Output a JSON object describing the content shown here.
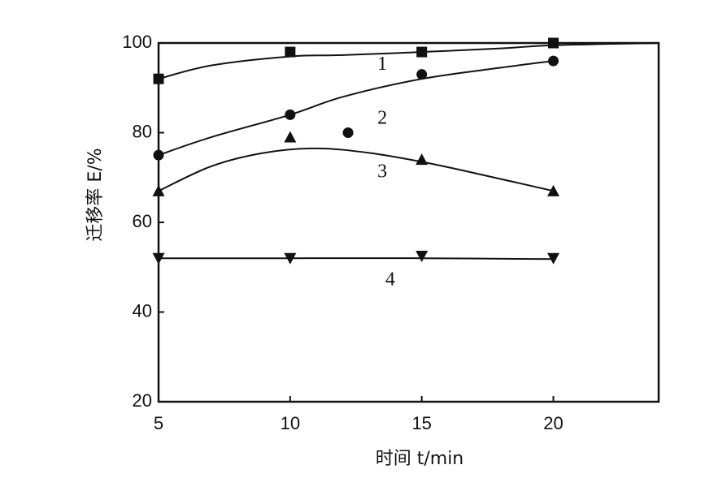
{
  "chart_data": {
    "type": "line",
    "title": "",
    "xlabel": "时间 t/min",
    "ylabel": "迁移率 E/%",
    "xlim": [
      5,
      24
    ],
    "ylim": [
      20,
      100
    ],
    "x_ticks": [
      5,
      10,
      15,
      20
    ],
    "y_ticks": [
      20,
      40,
      60,
      80,
      100
    ],
    "grid": false,
    "legend": "none",
    "series": [
      {
        "name": "1",
        "marker": "square",
        "x": [
          5,
          10,
          15,
          20
        ],
        "y": [
          92,
          98,
          98,
          100
        ]
      },
      {
        "name": "2",
        "marker": "circle",
        "x": [
          5,
          10,
          12.2,
          15,
          20
        ],
        "y": [
          75,
          84,
          80,
          93,
          96
        ]
      },
      {
        "name": "3",
        "marker": "triangle-up",
        "x": [
          5,
          10,
          15,
          20
        ],
        "y": [
          67,
          79,
          74,
          67
        ]
      },
      {
        "name": "4",
        "marker": "triangle-down",
        "x": [
          5,
          10,
          15,
          20
        ],
        "y": [
          52,
          52,
          52.5,
          52
        ]
      }
    ],
    "fit_curves": [
      {
        "series": "1",
        "x": [
          5,
          7,
          10,
          12,
          15,
          18,
          20,
          24
        ],
        "y": [
          92,
          95,
          97,
          97.3,
          98,
          98.8,
          99.5,
          100
        ]
      },
      {
        "series": "2",
        "x": [
          5,
          7,
          10,
          12,
          15,
          18,
          20
        ],
        "y": [
          75,
          79,
          84,
          88,
          92,
          94.5,
          96
        ]
      },
      {
        "series": "3",
        "x": [
          5,
          7,
          9,
          11,
          13,
          15,
          17,
          20
        ],
        "y": [
          67,
          72.5,
          75.5,
          76.5,
          75.5,
          73.5,
          71,
          67
        ]
      },
      {
        "series": "4",
        "x": [
          5,
          10,
          15,
          20
        ],
        "y": [
          52,
          52,
          52,
          51.8
        ]
      }
    ],
    "series_labels": [
      {
        "text": "1",
        "x": 13.5,
        "y": 95
      },
      {
        "text": "2",
        "x": 13.5,
        "y": 83
      },
      {
        "text": "3",
        "x": 13.5,
        "y": 71
      },
      {
        "text": "4",
        "x": 13.8,
        "y": 47
      }
    ]
  }
}
